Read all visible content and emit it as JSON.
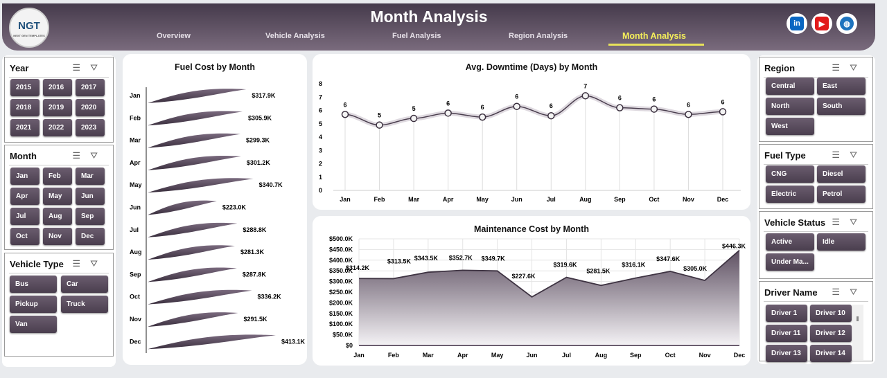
{
  "header": {
    "title": "Month Analysis",
    "logo": "NGT",
    "logo_sub": "NEXT GEN TEMPLATES",
    "tabs": [
      {
        "label": "Overview"
      },
      {
        "label": "Vehicle Analysis"
      },
      {
        "label": "Fuel Analysis"
      },
      {
        "label": "Region Analysis"
      },
      {
        "label": "Month Analysis",
        "active": true
      }
    ],
    "social": [
      {
        "icon": "linkedin-icon",
        "label": "in",
        "color": "#0a66c2"
      },
      {
        "icon": "youtube-icon",
        "label": "▶",
        "color": "#e21b1b"
      },
      {
        "icon": "globe-icon",
        "label": "🌐",
        "color": "#1e73be"
      }
    ]
  },
  "slicers_left": [
    {
      "title": "Year",
      "items": [
        "2015",
        "2016",
        "2017",
        "2018",
        "2019",
        "2020",
        "2021",
        "2022",
        "2023"
      ]
    },
    {
      "title": "Month",
      "items": [
        "Jan",
        "Feb",
        "Mar",
        "Apr",
        "May",
        "Jun",
        "Jul",
        "Aug",
        "Sep",
        "Oct",
        "Nov",
        "Dec"
      ]
    },
    {
      "title": "Vehicle Type",
      "items": [
        "Bus",
        "Car",
        "Pickup",
        "Truck",
        "Van"
      ]
    }
  ],
  "slicers_right": [
    {
      "title": "Region",
      "items": [
        "Central",
        "East",
        "North",
        "South",
        "West"
      ]
    },
    {
      "title": "Fuel Type",
      "items": [
        "CNG",
        "Diesel",
        "Electric",
        "Petrol"
      ]
    },
    {
      "title": "Vehicle Status",
      "items": [
        "Active",
        "Idle",
        "Under Ma..."
      ]
    },
    {
      "title": "Driver Name",
      "items": [
        "Driver 1",
        "Driver 10",
        "Driver 11",
        "Driver 12",
        "Driver 13",
        "Driver 14"
      ]
    }
  ],
  "chart_data": [
    {
      "type": "bar",
      "title": "Fuel Cost by Month",
      "orientation": "horizontal",
      "categories": [
        "Jan",
        "Feb",
        "Mar",
        "Apr",
        "May",
        "Jun",
        "Jul",
        "Aug",
        "Sep",
        "Oct",
        "Nov",
        "Dec"
      ],
      "values": [
        317.9,
        305.9,
        299.3,
        301.2,
        340.7,
        223.0,
        288.8,
        281.3,
        287.8,
        336.2,
        291.5,
        413.1
      ],
      "labels": [
        "$317.9K",
        "$305.9K",
        "$299.3K",
        "$301.2K",
        "$340.7K",
        "$223.0K",
        "$288.8K",
        "$281.3K",
        "$287.8K",
        "$336.2K",
        "$291.5K",
        "$413.1K"
      ],
      "unit": "$K"
    },
    {
      "type": "line",
      "title": "Avg. Downtime (Days) by Month",
      "categories": [
        "Jan",
        "Feb",
        "Mar",
        "Apr",
        "May",
        "Jun",
        "Jul",
        "Aug",
        "Sep",
        "Oct",
        "Nov",
        "Dec"
      ],
      "values": [
        5.7,
        4.9,
        5.4,
        5.8,
        5.5,
        6.3,
        5.6,
        7.1,
        6.2,
        6.1,
        5.7,
        5.9
      ],
      "labels": [
        "6",
        "5",
        "5",
        "6",
        "6",
        "6",
        "6",
        "7",
        "6",
        "6",
        "6",
        "6"
      ],
      "yticks": [
        "0",
        "1",
        "2",
        "3",
        "4",
        "5",
        "6",
        "7",
        "8"
      ],
      "ylim": [
        0,
        8
      ]
    },
    {
      "type": "area",
      "title": "Maintenance Cost by Month",
      "categories": [
        "Jan",
        "Feb",
        "Mar",
        "Apr",
        "May",
        "Jun",
        "Jul",
        "Aug",
        "Sep",
        "Oct",
        "Nov",
        "Dec"
      ],
      "values": [
        314.2,
        313.5,
        343.5,
        352.7,
        349.7,
        227.6,
        319.6,
        281.5,
        316.1,
        347.6,
        305.0,
        446.3
      ],
      "labels": [
        "$314.2K",
        "$313.5K",
        "$343.5K",
        "$352.7K",
        "$349.7K",
        "$227.6K",
        "$319.6K",
        "$281.5K",
        "$316.1K",
        "$347.6K",
        "$305.0K",
        "$446.3K"
      ],
      "yticks": [
        "$0",
        "$50.0K",
        "$100.0K",
        "$150.0K",
        "$200.0K",
        "$250.0K",
        "$300.0K",
        "$350.0K",
        "$400.0K",
        "$450.0K",
        "$500.0K"
      ],
      "ylim": [
        0,
        500
      ]
    }
  ]
}
